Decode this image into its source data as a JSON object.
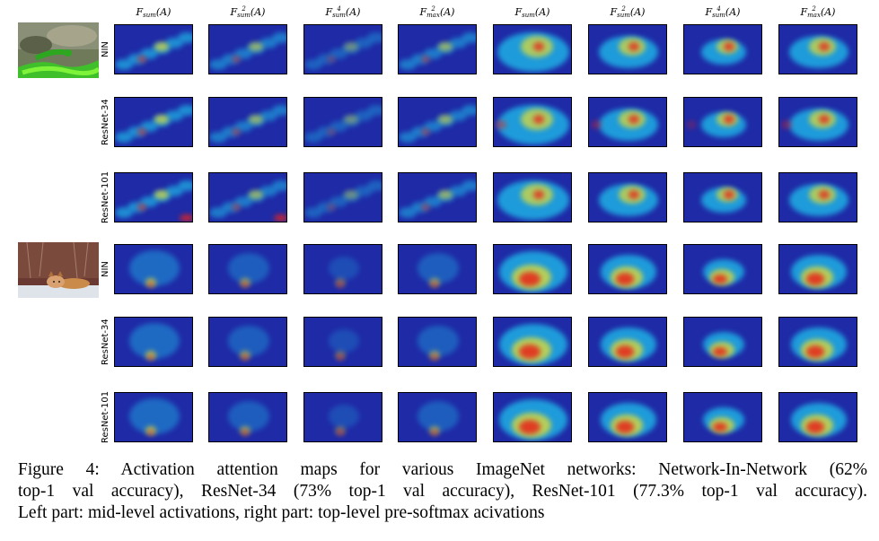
{
  "columns": [
    {
      "base": "F",
      "sup": "",
      "sub": "sum",
      "arg": "(A)"
    },
    {
      "base": "F",
      "sup": "2",
      "sub": "sum",
      "arg": "(A)"
    },
    {
      "base": "F",
      "sup": "4",
      "sub": "sum",
      "arg": "(A)"
    },
    {
      "base": "F",
      "sup": "2",
      "sub": "max",
      "arg": "(A)"
    },
    {
      "base": "F",
      "sup": "",
      "sub": "sum",
      "arg": "(A)"
    },
    {
      "base": "F",
      "sup": "2",
      "sub": "sum",
      "arg": "(A)"
    },
    {
      "base": "F",
      "sup": "4",
      "sub": "sum",
      "arg": "(A)"
    },
    {
      "base": "F",
      "sup": "2",
      "sub": "max",
      "arg": "(A)"
    }
  ],
  "rows": [
    {
      "label": "NIN",
      "image": "snake"
    },
    {
      "label": "ResNet-34",
      "image": "snake"
    },
    {
      "label": "ResNet-101",
      "image": "snake"
    },
    {
      "label": "NIN",
      "image": "fox"
    },
    {
      "label": "ResNet-34",
      "image": "fox"
    },
    {
      "label": "ResNet-101",
      "image": "fox"
    }
  ],
  "colors": {
    "heatmap_low": "#1e2aa6",
    "heatmap_mid": "#1fb8e8",
    "heatmap_high": "#e8231a"
  },
  "caption": {
    "line1": "Figure 4:  Activation attention maps for various ImageNet networks:  Network-In-Network (62%",
    "line2": "top-1 val accuracy), ResNet-34 (73% top-1 val accuracy), ResNet-101 (77.3% top-1 val accuracy).",
    "line3": "Left part: mid-level activations, right part: top-level pre-softmax acivations"
  }
}
